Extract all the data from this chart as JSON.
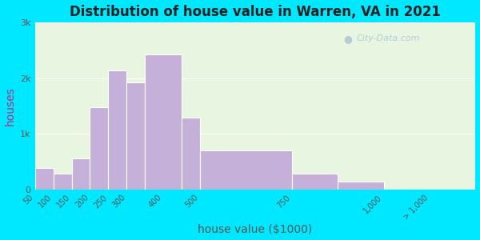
{
  "title": "Distribution of house value in Warren, VA in 2021",
  "xlabel": "house value ($1000)",
  "ylabel": "houses",
  "bar_labels": [
    "50",
    "100",
    "150",
    "200",
    "250",
    "300",
    "400",
    "500",
    "750",
    "1,000",
    "> 1,000"
  ],
  "bar_lefts": [
    50,
    100,
    150,
    200,
    250,
    300,
    350,
    450,
    500,
    750,
    875
  ],
  "bar_widths": [
    50,
    50,
    50,
    50,
    50,
    50,
    100,
    50,
    250,
    125,
    125
  ],
  "bar_values": [
    380,
    290,
    560,
    1480,
    2130,
    1920,
    2430,
    1290,
    700,
    290,
    140
  ],
  "tick_positions": [
    50,
    100,
    150,
    200,
    250,
    300,
    400,
    500,
    750,
    1000,
    1125
  ],
  "tick_labels": [
    "50",
    "100",
    "150",
    "200",
    "250",
    "300",
    "400",
    "500",
    "750",
    "1,000",
    "> 1,000"
  ],
  "bar_color": "#c4b0d8",
  "bar_edge_color": "#ffffff",
  "background_outer": "#00e8ff",
  "background_plot": "#e8f5e0",
  "ytick_labels": [
    "0",
    "1k",
    "2k",
    "3k"
  ],
  "ytick_values": [
    0,
    1000,
    2000,
    3000
  ],
  "ylim": [
    0,
    3000
  ],
  "xlim": [
    50,
    1250
  ],
  "title_fontsize": 12,
  "axis_label_fontsize": 10,
  "ylabel_color": "#aa3388",
  "watermark_text": "City-Data.com",
  "watermark_color": "#b0c8d8"
}
